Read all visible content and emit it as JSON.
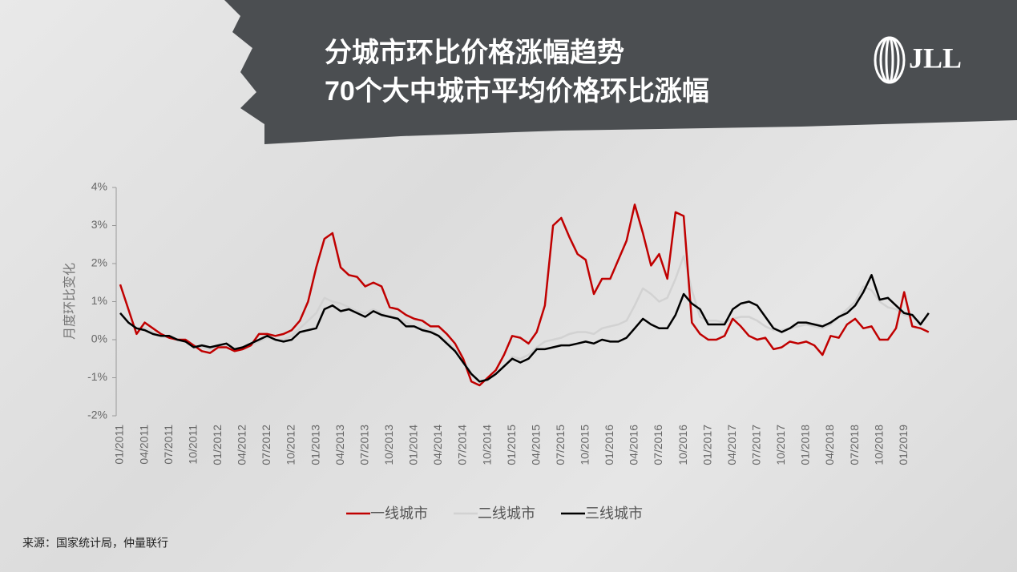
{
  "header": {
    "title": [
      "分城市环比价格涨幅趋势",
      "70个大中城市平均价格环比涨幅"
    ],
    "logo": "JLL"
  },
  "chart_data": {
    "type": "line",
    "y_label": "月度环比变化",
    "categories": [
      "01/2011",
      null,
      null,
      "04/2011",
      null,
      null,
      "07/2011",
      null,
      null,
      "10/2011",
      null,
      null,
      "01/2012",
      null,
      null,
      "04/2012",
      null,
      null,
      "07/2012",
      null,
      null,
      "10/2012",
      null,
      null,
      "01/2013",
      null,
      null,
      "04/2013",
      null,
      null,
      "07/2013",
      null,
      null,
      "10/2013",
      null,
      null,
      "01/2014",
      null,
      null,
      "04/2014",
      null,
      null,
      "07/2014",
      null,
      null,
      "10/2014",
      null,
      null,
      "01/2015",
      null,
      null,
      "04/2015",
      null,
      null,
      "07/2015",
      null,
      null,
      "10/2015",
      null,
      null,
      "01/2016",
      null,
      null,
      "04/2016",
      null,
      null,
      "07/2016",
      null,
      null,
      "10/2016",
      null,
      null,
      "01/2017",
      null,
      null,
      "04/2017",
      null,
      null,
      "07/2017",
      null,
      null,
      "10/2017",
      null,
      null,
      "01/2018",
      null,
      null,
      "04/2018",
      null,
      null,
      "07/2018",
      null,
      null,
      "10/2018",
      null,
      null,
      "01/2019",
      null,
      null,
      null
    ],
    "series": [
      {
        "name": "一线城市",
        "color": "#c00000",
        "values": [
          1.45,
          0.8,
          0.15,
          0.45,
          0.3,
          0.15,
          0.05,
          0.0,
          0.0,
          -0.15,
          -0.3,
          -0.35,
          -0.2,
          -0.2,
          -0.3,
          -0.25,
          -0.15,
          0.15,
          0.15,
          0.1,
          0.15,
          0.25,
          0.5,
          1.0,
          1.9,
          2.65,
          2.8,
          1.9,
          1.7,
          1.65,
          1.4,
          1.5,
          1.4,
          0.85,
          0.8,
          0.65,
          0.55,
          0.5,
          0.35,
          0.35,
          0.15,
          -0.1,
          -0.5,
          -1.1,
          -1.2,
          -1.0,
          -0.8,
          -0.4,
          0.1,
          0.05,
          -0.1,
          0.2,
          0.9,
          3.0,
          3.2,
          2.7,
          2.25,
          2.1,
          1.2,
          1.6,
          1.6,
          2.1,
          2.6,
          3.55,
          2.8,
          1.95,
          2.25,
          1.6,
          3.35,
          3.25,
          0.45,
          0.15,
          0.0,
          0.0,
          0.1,
          0.55,
          0.35,
          0.1,
          0.0,
          0.05,
          -0.25,
          -0.2,
          -0.05,
          -0.1,
          -0.05,
          -0.15,
          -0.4,
          0.1,
          0.05,
          0.4,
          0.55,
          0.3,
          0.35,
          0.0,
          0.0,
          0.3,
          1.25,
          0.35,
          0.3,
          0.2
        ]
      },
      {
        "name": "二线城市",
        "color": "#d2d2d2",
        "values": [
          0.7,
          0.45,
          0.3,
          0.3,
          0.2,
          0.1,
          0.05,
          0.0,
          -0.05,
          -0.15,
          -0.2,
          -0.25,
          -0.2,
          -0.2,
          -0.3,
          -0.25,
          -0.15,
          -0.05,
          0.05,
          0.0,
          0.0,
          0.1,
          0.3,
          0.5,
          0.7,
          1.1,
          1.0,
          0.95,
          0.85,
          0.75,
          0.7,
          0.8,
          0.7,
          0.6,
          0.55,
          0.45,
          0.35,
          0.3,
          0.25,
          0.1,
          -0.05,
          -0.25,
          -0.55,
          -0.9,
          -1.1,
          -1.05,
          -0.9,
          -0.7,
          -0.45,
          -0.5,
          -0.4,
          -0.2,
          -0.05,
          0.0,
          0.05,
          0.15,
          0.2,
          0.2,
          0.15,
          0.3,
          0.35,
          0.4,
          0.5,
          0.9,
          1.35,
          1.2,
          1.0,
          1.1,
          1.6,
          2.2,
          1.3,
          0.6,
          0.5,
          0.5,
          0.45,
          0.55,
          0.6,
          0.6,
          0.5,
          0.35,
          0.25,
          0.25,
          0.3,
          0.35,
          0.4,
          0.35,
          0.3,
          0.4,
          0.6,
          0.8,
          1.0,
          1.4,
          1.3,
          1.0,
          0.85,
          0.8,
          0.65,
          0.6,
          0.45,
          0.65
        ]
      },
      {
        "name": "三线城市",
        "color": "#000000",
        "values": [
          0.7,
          0.45,
          0.3,
          0.25,
          0.15,
          0.1,
          0.1,
          0.0,
          -0.05,
          -0.2,
          -0.15,
          -0.2,
          -0.15,
          -0.1,
          -0.25,
          -0.2,
          -0.1,
          0.0,
          0.1,
          0.0,
          -0.05,
          0.0,
          0.2,
          0.25,
          0.3,
          0.8,
          0.9,
          0.75,
          0.8,
          0.7,
          0.6,
          0.75,
          0.65,
          0.6,
          0.55,
          0.35,
          0.35,
          0.25,
          0.2,
          0.1,
          -0.1,
          -0.3,
          -0.6,
          -0.9,
          -1.1,
          -1.05,
          -0.9,
          -0.7,
          -0.5,
          -0.6,
          -0.5,
          -0.25,
          -0.25,
          -0.2,
          -0.15,
          -0.15,
          -0.1,
          -0.05,
          -0.1,
          0.0,
          -0.05,
          -0.05,
          0.05,
          0.3,
          0.55,
          0.4,
          0.3,
          0.3,
          0.65,
          1.2,
          0.95,
          0.8,
          0.4,
          0.4,
          0.4,
          0.8,
          0.95,
          1.0,
          0.9,
          0.6,
          0.3,
          0.2,
          0.3,
          0.45,
          0.45,
          0.4,
          0.35,
          0.45,
          0.6,
          0.7,
          0.9,
          1.25,
          1.7,
          1.05,
          1.1,
          0.9,
          0.7,
          0.65,
          0.4,
          0.7
        ]
      }
    ],
    "ylim": [
      -2,
      4
    ],
    "yticks": [
      {
        "value": -2,
        "label": "-2%"
      },
      {
        "value": -1,
        "label": "-1%"
      },
      {
        "value": 0,
        "label": "0%"
      },
      {
        "value": 1,
        "label": "1%"
      },
      {
        "value": 2,
        "label": "2%"
      },
      {
        "value": 3,
        "label": "3%"
      },
      {
        "value": 4,
        "label": "4%"
      }
    ],
    "legend": "bottom"
  },
  "source": "来源：国家统计局，仲量联行"
}
